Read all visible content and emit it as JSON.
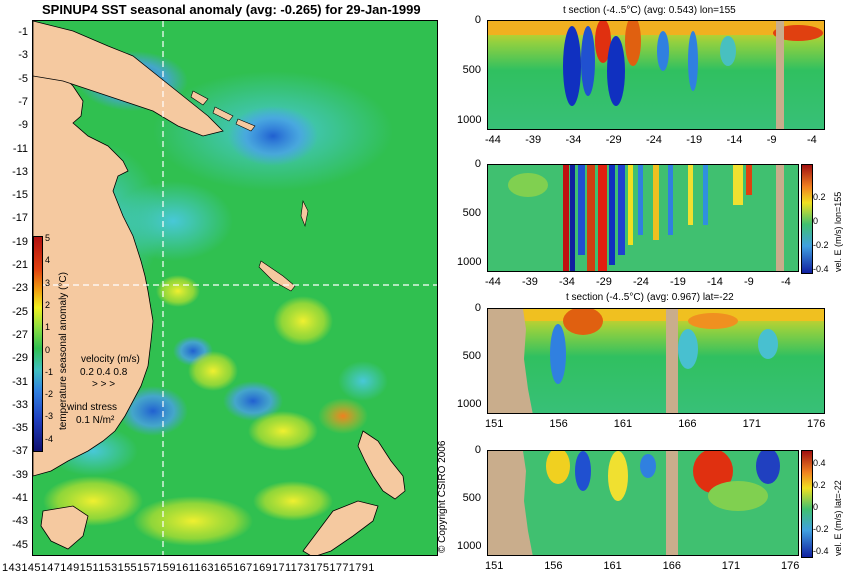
{
  "main_map": {
    "title": "SPINUP4 SST seasonal anomaly (avg: -0.265) for 29-Jan-1999",
    "lat_labels": [
      "-1",
      "-3",
      "-5",
      "-7",
      "-9",
      "-11",
      "-13",
      "-15",
      "-17",
      "-19",
      "-21",
      "-23",
      "-25",
      "-27",
      "-29",
      "-31",
      "-33",
      "-35",
      "-37",
      "-39",
      "-41",
      "-43",
      "-45"
    ],
    "lon_labels": "1431451471491511531551571591611631651671691711731751771791",
    "colorbar": {
      "label": "temperature seasonal anomaly (°C)",
      "ticks": [
        "5",
        "4",
        "3",
        "2",
        "1",
        "0",
        "-1",
        "-2",
        "-3",
        "-4"
      ]
    },
    "velocity_legend": {
      "title": "velocity (m/s)",
      "scale": "0.2 0.4 0.8"
    },
    "wind_legend": {
      "title": "wind stress",
      "scale": "0.1 N/m²"
    },
    "copyright": "© Copyright CSIRO 2006"
  },
  "panels": {
    "t_lon": {
      "title": "t section (-4..5°C) (avg: 0.543) lon=155",
      "x_ticks": [
        "-44",
        "-39",
        "-34",
        "-29",
        "-24",
        "-19",
        "-14",
        "-9",
        "-4"
      ],
      "y_ticks": [
        "0",
        "500",
        "1000"
      ]
    },
    "v_lon": {
      "x_ticks": [
        "-44",
        "-39",
        "-34",
        "-29",
        "-24",
        "-19",
        "-14",
        "-9",
        "-4"
      ],
      "y_ticks": [
        "0",
        "500",
        "1000"
      ],
      "colorbar_label": "vel. E (m/s) lon=155",
      "colorbar_ticks": [
        "0.2",
        "0",
        "-0.2",
        "-0.4"
      ]
    },
    "t_lat": {
      "title": "t section (-4..5°C) (avg: 0.967) lat=-22",
      "x_ticks": [
        "151",
        "156",
        "161",
        "166",
        "171",
        "176"
      ],
      "y_ticks": [
        "0",
        "500",
        "1000"
      ]
    },
    "v_lat": {
      "x_ticks": [
        "151",
        "156",
        "161",
        "166",
        "171",
        "176"
      ],
      "y_ticks": [
        "0",
        "500",
        "1000"
      ],
      "colorbar_label": "vel. E (m/s) lat=-22",
      "colorbar_ticks": [
        "0.4",
        "0.2",
        "0",
        "-0.2",
        "-0.4"
      ]
    }
  },
  "colors": {
    "ocean_green": "#2fbf4a",
    "land": "#f5c9a0",
    "land_tan": "#c9ad8c",
    "anomaly_blue": "#3b8ce0",
    "anomaly_yellow": "#f0e030",
    "anomaly_red": "#d83a1a"
  }
}
